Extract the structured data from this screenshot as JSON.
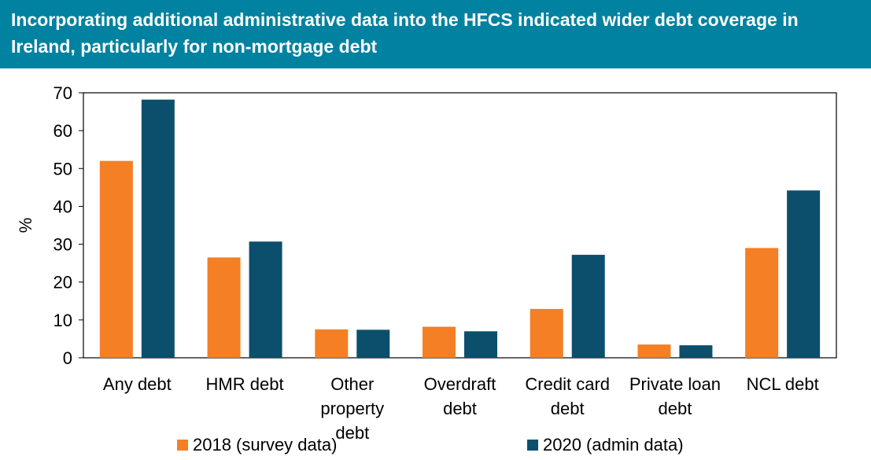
{
  "colors": {
    "title_bg": "#0082A0",
    "title_text": "#FFFFFF",
    "series_2018": "#F47F24",
    "series_2020": "#0B4F6C",
    "axis": "#000000",
    "text": "#000000"
  },
  "title": "Incorporating additional administrative data into the HFCS indicated wider debt coverage in Ireland, particularly for non-mortgage debt",
  "chart_data": {
    "type": "bar",
    "title": "Incorporating additional administrative data into the HFCS indicated wider debt coverage in Ireland, particularly for non-mortgage debt",
    "xlabel": "",
    "ylabel": "%",
    "ylim": [
      0,
      70
    ],
    "yticks": [
      0,
      10,
      20,
      30,
      40,
      50,
      60,
      70
    ],
    "grid": false,
    "legend_position": "bottom",
    "categories": [
      [
        "Any debt"
      ],
      [
        "HMR debt"
      ],
      [
        "Other",
        "property",
        "debt"
      ],
      [
        "Overdraft",
        "debt"
      ],
      [
        "Credit card",
        "debt"
      ],
      [
        "Private loan",
        "debt"
      ],
      [
        "NCL debt"
      ]
    ],
    "series": [
      {
        "name": "2018 (survey data)",
        "color": "#F47F24",
        "values": [
          52,
          26.5,
          7.5,
          8.2,
          12.9,
          3.5,
          29
        ]
      },
      {
        "name": "2020 (admin data)",
        "color": "#0B4F6C",
        "values": [
          68.2,
          30.7,
          7.4,
          7,
          27.2,
          3.3,
          44.2
        ]
      }
    ]
  }
}
